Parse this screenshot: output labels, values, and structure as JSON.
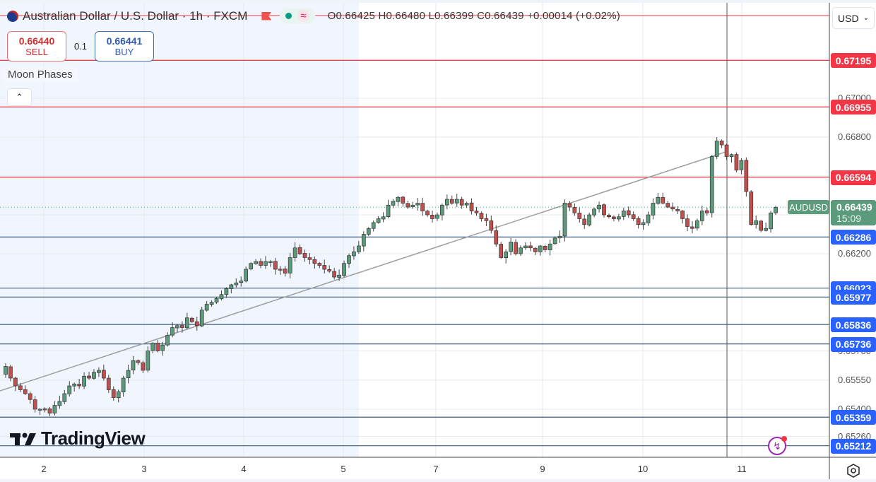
{
  "header": {
    "symbol_title": "Australian Dollar / U.S. Dollar · 1h · FXCM",
    "status_icons": [
      "market-open-dot",
      "data-delayed-wave"
    ],
    "ohlc": {
      "open": "O0.66425",
      "high": "H0.66480",
      "low": "L0.66399",
      "close": "C0.66439",
      "change": "+0.00014 (+0.02%)"
    }
  },
  "trade": {
    "sell_price": "0.66440",
    "sell_label": "SELL",
    "spread": "0.1",
    "buy_price": "0.66441",
    "buy_label": "BUY"
  },
  "indicator": {
    "name": "Moon Phases",
    "collapse_icon": "chevron-up"
  },
  "price_scale": {
    "currency": "USD",
    "ticks": [
      "0.67000",
      "0.66800",
      "0.66200",
      "0.65700",
      "0.65550",
      "0.65400",
      "0.65260"
    ],
    "last_price": "0.66439",
    "countdown": "15:09",
    "symbol": "AUDUSD"
  },
  "time_axis": {
    "labels": [
      "2",
      "3",
      "4",
      "5",
      "7",
      "9",
      "10",
      "11"
    ]
  },
  "colors": {
    "up": "#5b9a7b",
    "down": "#c0504d",
    "resistance": "#f23645",
    "support": "#2962ff",
    "support_line": "#3d5a80",
    "session_bg": "#f1f5fd"
  },
  "branding": {
    "logo_text": "TradingView"
  },
  "chart_data": {
    "type": "candlestick",
    "title": "Australian Dollar / U.S. Dollar · 1h · FXCM",
    "xlabel": "",
    "ylabel": "USD",
    "ylim": [
      0.6518,
      0.674
    ],
    "grid": true,
    "x_tick_labels": [
      "2",
      "3",
      "4",
      "5",
      "7",
      "9",
      "10",
      "11"
    ],
    "horizontal_levels": {
      "resistance": [
        0.67195,
        0.66955,
        0.66594
      ],
      "support": [
        0.66286,
        0.66023,
        0.65977,
        0.65836,
        0.65736,
        0.65359,
        0.65212
      ]
    },
    "trendline": {
      "from": [
        0.6548,
        "2"
      ],
      "to": [
        0.6674,
        "11"
      ]
    },
    "last": {
      "symbol": "AUDUSD",
      "price": 0.66439,
      "countdown": "15:09"
    },
    "closes": [
      0.6562,
      0.6556,
      0.6552,
      0.655,
      0.6548,
      0.6545,
      0.654,
      0.654,
      0.654,
      0.6538,
      0.6542,
      0.6544,
      0.6548,
      0.6552,
      0.6553,
      0.6552,
      0.6557,
      0.6556,
      0.6559,
      0.656,
      0.6556,
      0.655,
      0.6546,
      0.6549,
      0.6556,
      0.656,
      0.6565,
      0.6564,
      0.656,
      0.657,
      0.6574,
      0.657,
      0.6573,
      0.6578,
      0.6582,
      0.6583,
      0.6582,
      0.6587,
      0.6585,
      0.6583,
      0.6591,
      0.6594,
      0.6595,
      0.6597,
      0.6599,
      0.6602,
      0.6604,
      0.6605,
      0.6606,
      0.6612,
      0.6615,
      0.6616,
      0.6614,
      0.6616,
      0.6616,
      0.6612,
      0.6612,
      0.661,
      0.6618,
      0.6623,
      0.662,
      0.6618,
      0.6617,
      0.6615,
      0.6614,
      0.6612,
      0.6611,
      0.6608,
      0.6609,
      0.6615,
      0.6619,
      0.6621,
      0.6624,
      0.663,
      0.6633,
      0.6636,
      0.6638,
      0.6639,
      0.6645,
      0.6647,
      0.6649,
      0.6646,
      0.6644,
      0.6645,
      0.6646,
      0.6642,
      0.664,
      0.6638,
      0.664,
      0.6645,
      0.6648,
      0.6646,
      0.6648,
      0.6645,
      0.6646,
      0.6642,
      0.6641,
      0.6638,
      0.6637,
      0.6632,
      0.6625,
      0.6618,
      0.6621,
      0.6626,
      0.662,
      0.6623,
      0.6624,
      0.6623,
      0.6621,
      0.6624,
      0.6622,
      0.6625,
      0.6628,
      0.6629,
      0.6646,
      0.6644,
      0.6641,
      0.6638,
      0.6635,
      0.664,
      0.6643,
      0.6645,
      0.664,
      0.6639,
      0.6638,
      0.6639,
      0.6642,
      0.664,
      0.6638,
      0.6635,
      0.6636,
      0.664,
      0.6646,
      0.6649,
      0.6646,
      0.6644,
      0.6643,
      0.6642,
      0.6638,
      0.6634,
      0.6633,
      0.6637,
      0.6642,
      0.6641,
      0.667,
      0.6678,
      0.6676,
      0.667,
      0.6671,
      0.6663,
      0.6668,
      0.6652,
      0.6635,
      0.6637,
      0.6632,
      0.6633,
      0.6641,
      0.66439
    ]
  }
}
